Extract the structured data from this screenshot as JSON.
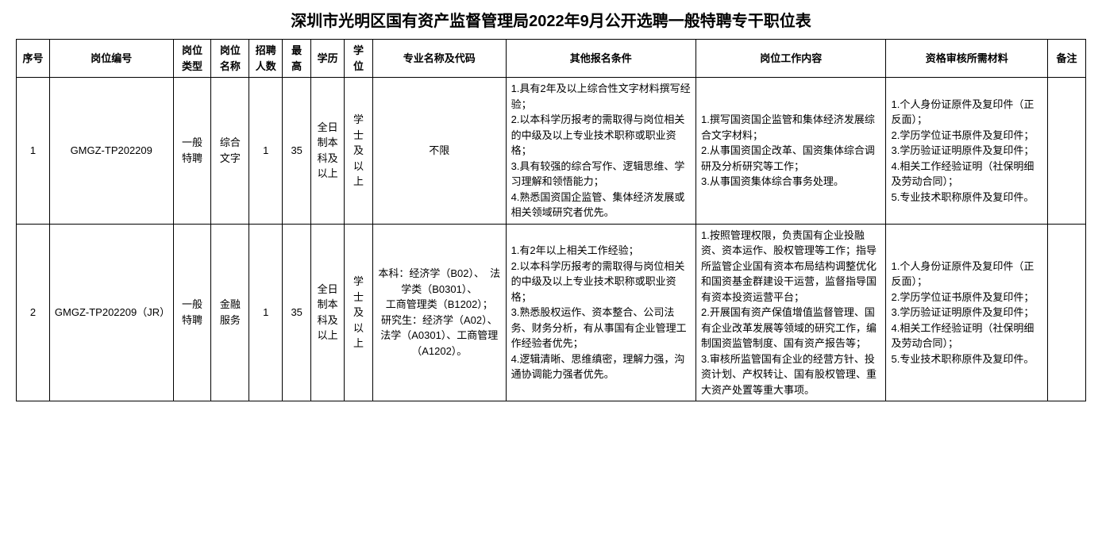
{
  "title": "深圳市光明区国有资产监督管理局2022年9月公开选聘一般特聘专干职位表",
  "columns": {
    "seq": "序号",
    "code": "岗位编号",
    "type": "岗位类型",
    "name": "岗位名称",
    "count": "招聘人数",
    "age": "最高",
    "edu": "学历",
    "degree": "学位",
    "major": "专业名称及代码",
    "other": "其他报名条件",
    "work": "岗位工作内容",
    "material": "资格审核所需材料",
    "remark": "备注"
  },
  "rows": [
    {
      "seq": "1",
      "code": "GMGZ-TP202209",
      "type": "一般特聘",
      "name": "综合文字",
      "count": "1",
      "age": "35",
      "edu": "全日制本科及以上",
      "degree": "学士及以上",
      "major": "不限",
      "other": "1.具有2年及以上综合性文字材料撰写经验；\n2.以本科学历报考的需取得与岗位相关的中级及以上专业技术职称或职业资格；\n3.具有较强的综合写作、逻辑思维、学习理解和领悟能力；\n4.熟悉国资国企监管、集体经济发展或相关领域研究者优先。",
      "work": "1.撰写国资国企监管和集体经济发展综合文字材料；\n2.从事国资国企改革、国资集体综合调研及分析研究等工作；\n3.从事国资集体综合事务处理。",
      "material": "1.个人身份证原件及复印件（正反面）；\n2.学历学位证书原件及复印件；\n3.学历验证证明原件及复印件；\n4.相关工作经验证明（社保明细及劳动合同）；\n5.专业技术职称原件及复印件。",
      "remark": ""
    },
    {
      "seq": "2",
      "code": "GMGZ-TP202209（JR）",
      "type": "一般特聘",
      "name": "金融服务",
      "count": "1",
      "age": "35",
      "edu": "全日制本科及以上",
      "degree": "学士及以上",
      "major": "本科：经济学（B02）、  法学类（B0301）、\n工商管理类（B1202）；\n研究生：经济学（A02）、\n法学（A0301）、工商管理（A1202）。",
      "other": "1.有2年以上相关工作经验；\n2.以本科学历报考的需取得与岗位相关的中级及以上专业技术职称或职业资格；\n3.熟悉股权运作、资本整合、公司法务、财务分析，有从事国有企业管理工作经验者优先；\n4.逻辑清晰、思维缜密，理解力强，沟通协调能力强者优先。",
      "work": "1.按照管理权限，负责国有企业投融资、资本运作、股权管理等工作；指导所监管企业国有资本布局结构调整优化和国资基金群建设干运营，监督指导国有资本投资运营平台；\n2.开展国有资产保值增值监督管理、国有企业改革发展等领域的研究工作，编制国资监管制度、国有资产报告等；\n3.审核所监管国有企业的经营方针、投资计划、产权转让、国有股权管理、重大资产处置等重大事项。",
      "material": "1.个人身份证原件及复印件（正反面）；\n2.学历学位证书原件及复印件；\n3.学历验证证明原件及复印件；\n4.相关工作经验证明（社保明细及劳动合同）；\n5.专业技术职称原件及复印件。",
      "remark": ""
    }
  ],
  "styling": {
    "title_fontsize": 20,
    "cell_fontsize": 13,
    "border_color": "#000000",
    "background_color": "#ffffff",
    "text_color": "#000000",
    "line_height": 1.5
  }
}
